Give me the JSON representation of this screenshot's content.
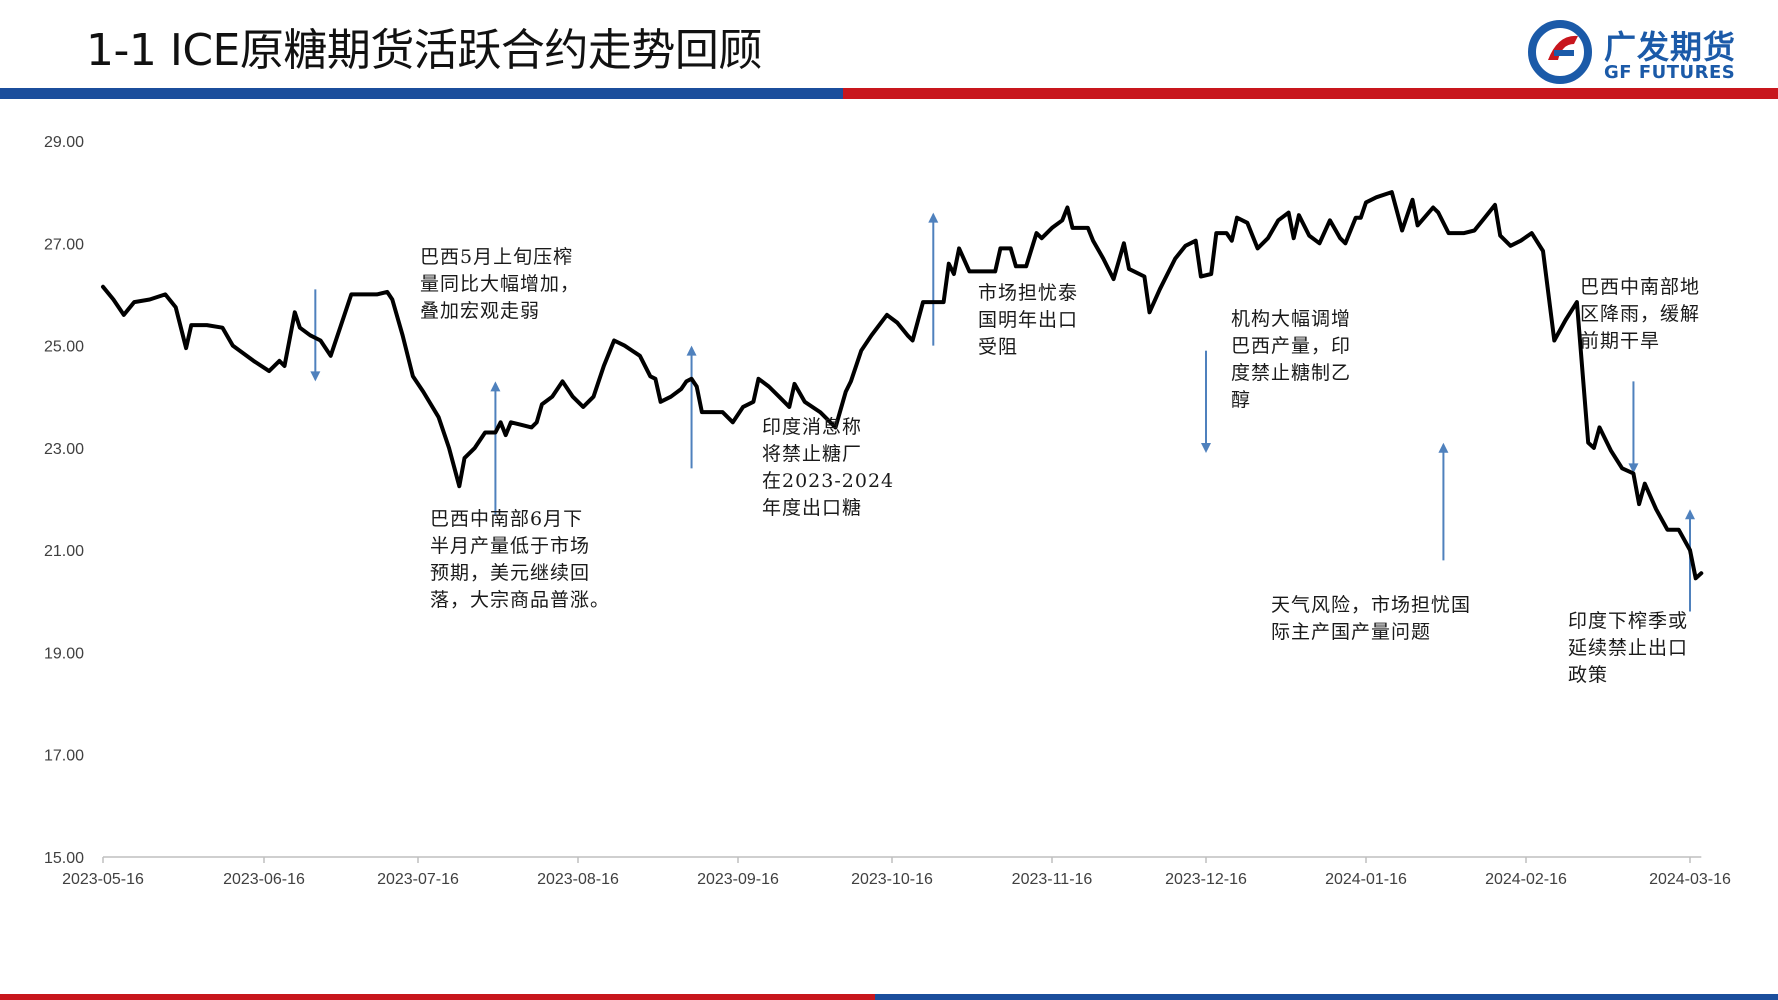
{
  "header": {
    "title": "1-1 ICE原糖期货活跃合约走势回顾",
    "logo_cn": "广发期货",
    "logo_en": "GF FUTURES",
    "colors": {
      "blue": "#1b4e9c",
      "red": "#c8161d",
      "logo": "#1b5aa8"
    }
  },
  "annotations": [
    {
      "id": "a1",
      "lines": [
        "巴西5月上旬压榨",
        "量同比大幅增加，",
        "叠加宏观走弱"
      ]
    },
    {
      "id": "a2",
      "lines": [
        "巴西中南部6月下",
        "半月产量低于市场",
        "预期，美元继续回",
        "落，大宗商品普涨。"
      ]
    },
    {
      "id": "a3",
      "lines": [
        "印度消息称",
        "将禁止糖厂",
        "在2023-2024",
        "年度出口糖"
      ]
    },
    {
      "id": "a4",
      "lines": [
        "市场担忧泰",
        "国明年出口",
        "受阻"
      ]
    },
    {
      "id": "a5",
      "lines": [
        "机构大幅调增",
        "巴西产量，印",
        "度禁止糖制乙",
        "醇"
      ]
    },
    {
      "id": "a6",
      "lines": [
        "天气风险，市场担忧国",
        "际主产国产量问题"
      ]
    },
    {
      "id": "a7",
      "lines": [
        "巴西中南部地",
        "区降雨，缓解",
        "前期干旱"
      ]
    },
    {
      "id": "a8",
      "lines": [
        "印度下榨季或",
        "延续禁止出口",
        "政策"
      ]
    }
  ],
  "chart_data": {
    "type": "line",
    "title": "",
    "xlabel": "",
    "ylabel": "",
    "ylim": [
      15,
      29
    ],
    "y_ticks": [
      "15.00",
      "17.00",
      "19.00",
      "21.00",
      "23.00",
      "25.00",
      "27.00",
      "29.00"
    ],
    "x_ticks": [
      "2023-05-16",
      "2023-06-16",
      "2023-07-16",
      "2023-08-16",
      "2023-09-16",
      "2023-10-16",
      "2023-11-16",
      "2023-12-16",
      "2024-01-16",
      "2024-02-16",
      "2024-03-16"
    ],
    "line_color": "#000000",
    "arrow_color": "#4f81bd",
    "grid": false,
    "series": [
      {
        "name": "",
        "points": [
          [
            "2023-05-16",
            26.15
          ],
          [
            "2023-05-18",
            25.9
          ],
          [
            "2023-05-20",
            25.6
          ],
          [
            "2023-05-22",
            25.85
          ],
          [
            "2023-05-25",
            25.9
          ],
          [
            "2023-05-28",
            26.0
          ],
          [
            "2023-05-30",
            25.75
          ],
          [
            "2023-06-01",
            24.95
          ],
          [
            "2023-06-02",
            25.4
          ],
          [
            "2023-06-05",
            25.4
          ],
          [
            "2023-06-08",
            25.35
          ],
          [
            "2023-06-10",
            25.0
          ],
          [
            "2023-06-12",
            24.85
          ],
          [
            "2023-06-14",
            24.7
          ],
          [
            "2023-06-17",
            24.5
          ],
          [
            "2023-06-19",
            24.7
          ],
          [
            "2023-06-20",
            24.6
          ],
          [
            "2023-06-22",
            25.65
          ],
          [
            "2023-06-23",
            25.35
          ],
          [
            "2023-06-25",
            25.2
          ],
          [
            "2023-06-27",
            25.1
          ],
          [
            "2023-06-29",
            24.8
          ],
          [
            "2023-07-01",
            25.4
          ],
          [
            "2023-07-03",
            26.0
          ],
          [
            "2023-07-05",
            26.0
          ],
          [
            "2023-07-08",
            26.0
          ],
          [
            "2023-07-10",
            26.05
          ],
          [
            "2023-07-11",
            25.9
          ],
          [
            "2023-07-13",
            25.2
          ],
          [
            "2023-07-15",
            24.4
          ],
          [
            "2023-07-17",
            24.1
          ],
          [
            "2023-07-20",
            23.6
          ],
          [
            "2023-07-22",
            23.0
          ],
          [
            "2023-07-24",
            22.25
          ],
          [
            "2023-07-25",
            22.8
          ],
          [
            "2023-07-27",
            23.0
          ],
          [
            "2023-07-29",
            23.3
          ],
          [
            "2023-07-31",
            23.3
          ],
          [
            "2023-08-01",
            23.5
          ],
          [
            "2023-08-02",
            23.25
          ],
          [
            "2023-08-03",
            23.5
          ],
          [
            "2023-08-05",
            23.45
          ],
          [
            "2023-08-07",
            23.4
          ],
          [
            "2023-08-08",
            23.5
          ],
          [
            "2023-08-09",
            23.85
          ],
          [
            "2023-08-11",
            24.0
          ],
          [
            "2023-08-13",
            24.3
          ],
          [
            "2023-08-15",
            24.0
          ],
          [
            "2023-08-17",
            23.8
          ],
          [
            "2023-08-19",
            24.0
          ],
          [
            "2023-08-21",
            24.6
          ],
          [
            "2023-08-23",
            25.1
          ],
          [
            "2023-08-25",
            25.0
          ],
          [
            "2023-08-28",
            24.8
          ],
          [
            "2023-08-30",
            24.4
          ],
          [
            "2023-08-31",
            24.35
          ],
          [
            "2023-09-01",
            23.9
          ],
          [
            "2023-09-03",
            24.0
          ],
          [
            "2023-09-05",
            24.15
          ],
          [
            "2023-09-06",
            24.3
          ],
          [
            "2023-09-07",
            24.35
          ],
          [
            "2023-09-08",
            24.2
          ],
          [
            "2023-09-09",
            23.7
          ],
          [
            "2023-09-11",
            23.7
          ],
          [
            "2023-09-13",
            23.7
          ],
          [
            "2023-09-15",
            23.5
          ],
          [
            "2023-09-17",
            23.8
          ],
          [
            "2023-09-19",
            23.9
          ],
          [
            "2023-09-20",
            24.35
          ],
          [
            "2023-09-22",
            24.2
          ],
          [
            "2023-09-24",
            24.0
          ],
          [
            "2023-09-26",
            23.8
          ],
          [
            "2023-09-27",
            24.25
          ],
          [
            "2023-09-29",
            23.9
          ],
          [
            "2023-10-02",
            23.7
          ],
          [
            "2023-10-05",
            23.4
          ],
          [
            "2023-10-07",
            24.1
          ],
          [
            "2023-10-08",
            24.3
          ],
          [
            "2023-10-10",
            24.9
          ],
          [
            "2023-10-12",
            25.2
          ],
          [
            "2023-10-15",
            25.6
          ],
          [
            "2023-10-17",
            25.45
          ],
          [
            "2023-10-19",
            25.2
          ],
          [
            "2023-10-20",
            25.1
          ],
          [
            "2023-10-22",
            25.85
          ],
          [
            "2023-10-24",
            25.85
          ],
          [
            "2023-10-26",
            25.85
          ],
          [
            "2023-10-27",
            26.6
          ],
          [
            "2023-10-28",
            26.4
          ],
          [
            "2023-10-29",
            26.9
          ],
          [
            "2023-10-31",
            26.45
          ],
          [
            "2023-11-02",
            26.45
          ],
          [
            "2023-11-05",
            26.45
          ],
          [
            "2023-11-06",
            26.9
          ],
          [
            "2023-11-07",
            26.9
          ],
          [
            "2023-11-08",
            26.9
          ],
          [
            "2023-11-09",
            26.55
          ],
          [
            "2023-11-11",
            26.55
          ],
          [
            "2023-11-13",
            27.2
          ],
          [
            "2023-11-14",
            27.1
          ],
          [
            "2023-11-16",
            27.3
          ],
          [
            "2023-11-18",
            27.45
          ],
          [
            "2023-11-19",
            27.7
          ],
          [
            "2023-11-20",
            27.3
          ],
          [
            "2023-11-23",
            27.3
          ],
          [
            "2023-11-24",
            27.05
          ],
          [
            "2023-11-26",
            26.7
          ],
          [
            "2023-11-28",
            26.3
          ],
          [
            "2023-11-30",
            27.0
          ],
          [
            "2023-12-01",
            26.5
          ],
          [
            "2023-12-04",
            26.35
          ],
          [
            "2023-12-05",
            25.65
          ],
          [
            "2023-12-07",
            26.1
          ],
          [
            "2023-12-08",
            26.3
          ],
          [
            "2023-12-10",
            26.7
          ],
          [
            "2023-12-12",
            26.95
          ],
          [
            "2023-12-14",
            27.05
          ],
          [
            "2023-12-15",
            26.35
          ],
          [
            "2023-12-17",
            26.4
          ],
          [
            "2023-12-18",
            27.2
          ],
          [
            "2023-12-20",
            27.2
          ],
          [
            "2023-12-21",
            27.05
          ],
          [
            "2023-12-22",
            27.5
          ],
          [
            "2023-12-24",
            27.4
          ],
          [
            "2023-12-26",
            26.9
          ],
          [
            "2023-12-28",
            27.1
          ],
          [
            "2023-12-30",
            27.45
          ],
          [
            "2024-01-01",
            27.6
          ],
          [
            "2024-01-02",
            27.1
          ],
          [
            "2024-01-03",
            27.55
          ],
          [
            "2024-01-05",
            27.15
          ],
          [
            "2024-01-07",
            27.0
          ],
          [
            "2024-01-09",
            27.45
          ],
          [
            "2024-01-11",
            27.1
          ],
          [
            "2024-01-12",
            27.0
          ],
          [
            "2024-01-14",
            27.5
          ],
          [
            "2024-01-15",
            27.5
          ],
          [
            "2024-01-16",
            27.8
          ],
          [
            "2024-01-18",
            27.9
          ],
          [
            "2024-01-21",
            28.0
          ],
          [
            "2024-01-23",
            27.25
          ],
          [
            "2024-01-25",
            27.85
          ],
          [
            "2024-01-26",
            27.35
          ],
          [
            "2024-01-29",
            27.7
          ],
          [
            "2024-01-30",
            27.6
          ],
          [
            "2024-02-01",
            27.2
          ],
          [
            "2024-02-04",
            27.2
          ],
          [
            "2024-02-06",
            27.25
          ],
          [
            "2024-02-08",
            27.5
          ],
          [
            "2024-02-10",
            27.75
          ],
          [
            "2024-02-11",
            27.15
          ],
          [
            "2024-02-13",
            26.95
          ],
          [
            "2024-02-15",
            27.05
          ],
          [
            "2024-02-17",
            27.2
          ],
          [
            "2024-02-19",
            26.85
          ],
          [
            "2024-02-21",
            25.1
          ],
          [
            "2024-02-23",
            25.5
          ],
          [
            "2024-02-25",
            25.85
          ],
          [
            "2024-02-27",
            23.1
          ],
          [
            "2024-02-28",
            23.0
          ],
          [
            "2024-02-29",
            23.4
          ],
          [
            "2024-03-02",
            22.95
          ],
          [
            "2024-03-04",
            22.6
          ],
          [
            "2024-03-06",
            22.5
          ],
          [
            "2024-03-07",
            21.9
          ],
          [
            "2024-03-08",
            22.3
          ],
          [
            "2024-03-10",
            21.8
          ],
          [
            "2024-03-12",
            21.4
          ],
          [
            "2024-03-14",
            21.4
          ],
          [
            "2024-03-16",
            21.0
          ],
          [
            "2024-03-17",
            20.45
          ],
          [
            "2024-03-18",
            20.55
          ]
        ]
      }
    ]
  }
}
